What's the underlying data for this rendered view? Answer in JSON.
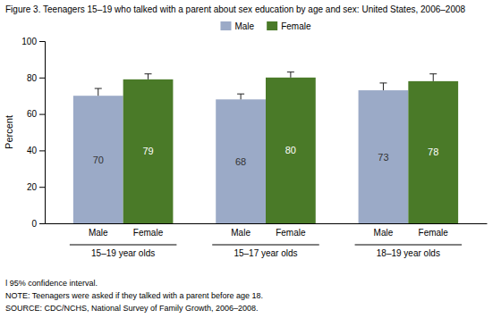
{
  "chart_data": {
    "type": "bar",
    "title": "Figure 3.  Teenagers 15–19 who talked with a parent about sex education by age and sex: United States, 2006–2008",
    "ylabel": "Percent",
    "categories": [
      "15–19 year olds",
      "15–17 year olds",
      "18–19 year olds"
    ],
    "series": [
      {
        "name": "Male",
        "color": "#9BAAC7",
        "values": [
          70,
          68,
          73
        ],
        "errors": [
          4,
          3,
          4
        ]
      },
      {
        "name": "Female",
        "color": "#4A7A28",
        "values": [
          79,
          80,
          78
        ],
        "errors": [
          3,
          3,
          4
        ]
      }
    ],
    "ylim": [
      0,
      100
    ],
    "yticks": [
      0,
      20,
      40,
      60,
      80,
      100
    ],
    "grid": false,
    "legend": "top",
    "data_labels": true,
    "annotations": [
      "ǀ 95% confidence interval.",
      "NOTE: Teenagers were asked if they talked with a parent before age 18.",
      "SOURCE: CDC/NCHS, National Survey of Family Growth, 2006–2008."
    ]
  }
}
